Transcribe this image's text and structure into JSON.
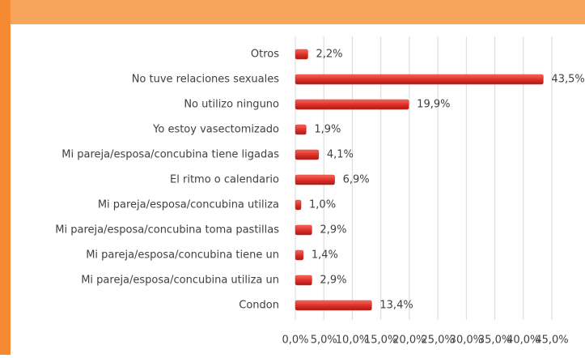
{
  "chart_data": {
    "type": "bar",
    "orientation": "horizontal",
    "categories": [
      "Otros",
      "No tuve relaciones sexuales",
      "No utilizo ninguno",
      "Yo estoy vasectomizado",
      "Mi pareja/esposa/concubina tiene ligadas",
      "El ritmo o calendario",
      "Mi pareja/esposa/concubina utiliza",
      "Mi pareja/esposa/concubina toma pastillas",
      "Mi pareja/esposa/concubina tiene un",
      "Mi pareja/esposa/concubina utiliza un",
      "Condon"
    ],
    "values": [
      2.2,
      43.5,
      19.9,
      1.9,
      4.1,
      6.9,
      1.0,
      2.9,
      1.4,
      2.9,
      13.4
    ],
    "value_labels": [
      "2,2%",
      "43,5%",
      "19,9%",
      "1,9%",
      "4,1%",
      "6,9%",
      "1,0%",
      "2,9%",
      "1,4%",
      "2,9%",
      "13,4%"
    ],
    "color": "#e0302a",
    "xlim": [
      0,
      45
    ],
    "xticks": [
      {
        "value": 0,
        "label": "0,0%"
      },
      {
        "value": 5,
        "label": "5,0%"
      },
      {
        "value": 10,
        "label": "10,0%"
      },
      {
        "value": 15,
        "label": "15,0%"
      },
      {
        "value": 20,
        "label": "20,0%"
      },
      {
        "value": 25,
        "label": "25,0%"
      },
      {
        "value": 30,
        "label": "30,0%"
      },
      {
        "value": 35,
        "label": "35,0%"
      },
      {
        "value": 40,
        "label": "40,0%"
      },
      {
        "value": 45,
        "label": "45,0%"
      }
    ],
    "grid": true
  }
}
